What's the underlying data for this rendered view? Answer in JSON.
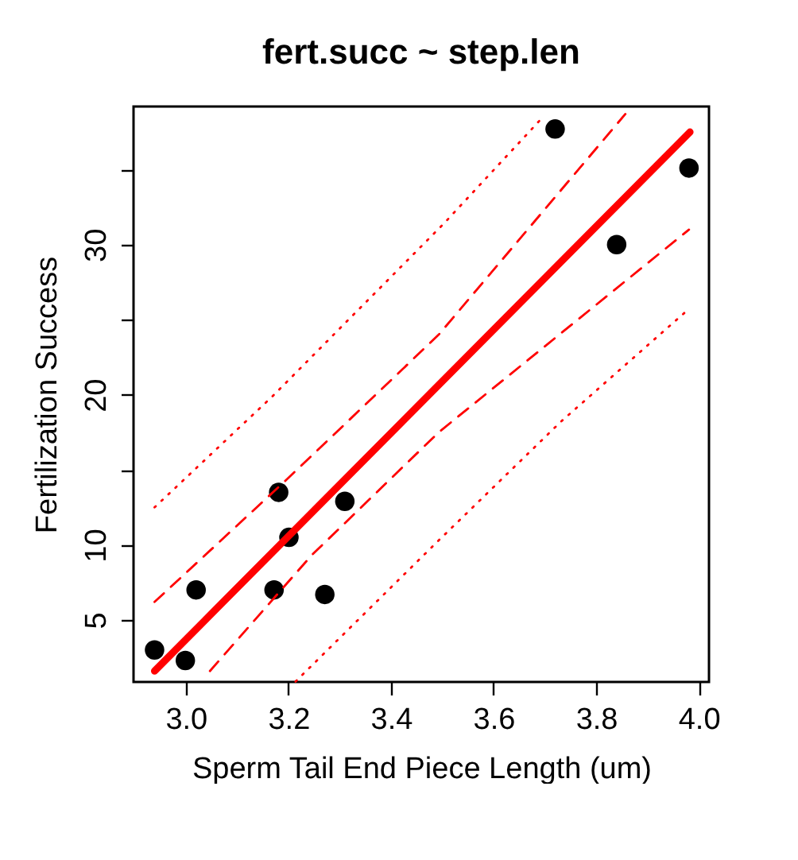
{
  "chart_data": {
    "type": "scatter",
    "title": "fert.succ ~ step.len",
    "xlabel": "Sperm Tail End Piece Length (um)",
    "ylabel": "Fertilization Success",
    "xlim": [
      2.898,
      4.02
    ],
    "xticks": [
      {
        "value": 3.0,
        "label": "3.0"
      },
      {
        "value": 3.2,
        "label": "3.2"
      },
      {
        "value": 3.4,
        "label": "3.4"
      },
      {
        "value": 3.6,
        "label": "3.6"
      },
      {
        "value": 3.8,
        "label": "3.8"
      },
      {
        "value": 4.0,
        "label": "4.0"
      }
    ],
    "ylim": [
      0.87,
      39.2
    ],
    "yticks": [
      5,
      10,
      {
        "value": 15,
        "label": null
      },
      20,
      {
        "value": 25,
        "label": null
      },
      30,
      {
        "value": 35,
        "label": null
      }
    ],
    "grid": false,
    "marker": "circle",
    "series": [
      {
        "color": "#000000",
        "x": [
          2.939,
          2.999,
          3.02,
          3.181,
          3.201,
          3.172,
          3.271,
          3.31,
          3.72,
          3.84,
          3.981
        ],
        "values": [
          3.0,
          2.3,
          7.0,
          13.5,
          10.5,
          7.0,
          6.7,
          12.9,
          37.7,
          30.0,
          35.1
        ]
      },
      {
        "type": "line",
        "marker": "none",
        "color": "#ff0000",
        "line_style": "solid",
        "x": [
          2.939,
          3.983
        ],
        "values": [
          1.6,
          37.5
        ]
      },
      {
        "type": "line",
        "marker": "none",
        "color": "#ff0000",
        "line_style": "dashed",
        "x": [
          2.939,
          3.195,
          3.493,
          3.857
        ],
        "values": [
          6.2,
          14.3,
          24.0,
          38.7
        ]
      },
      {
        "type": "line",
        "marker": "none",
        "color": "#ff0000",
        "line_style": "dashed",
        "x": [
          3.047,
          3.245,
          3.493,
          3.981
        ],
        "values": [
          1.6,
          9.3,
          17.5,
          31.0
        ]
      },
      {
        "type": "line",
        "marker": "none",
        "color": "#ff0000",
        "line_style": "dotted",
        "x": [
          2.939,
          3.169,
          3.503,
          3.699
        ],
        "values": [
          12.5,
          19.9,
          31.4,
          38.6
        ]
      },
      {
        "type": "line",
        "marker": "none",
        "color": "#ff0000",
        "line_style": "dotted",
        "x": [
          3.214,
          3.484,
          3.731,
          3.977
        ],
        "values": [
          0.9,
          10.0,
          18.2,
          25.6
        ]
      }
    ]
  }
}
